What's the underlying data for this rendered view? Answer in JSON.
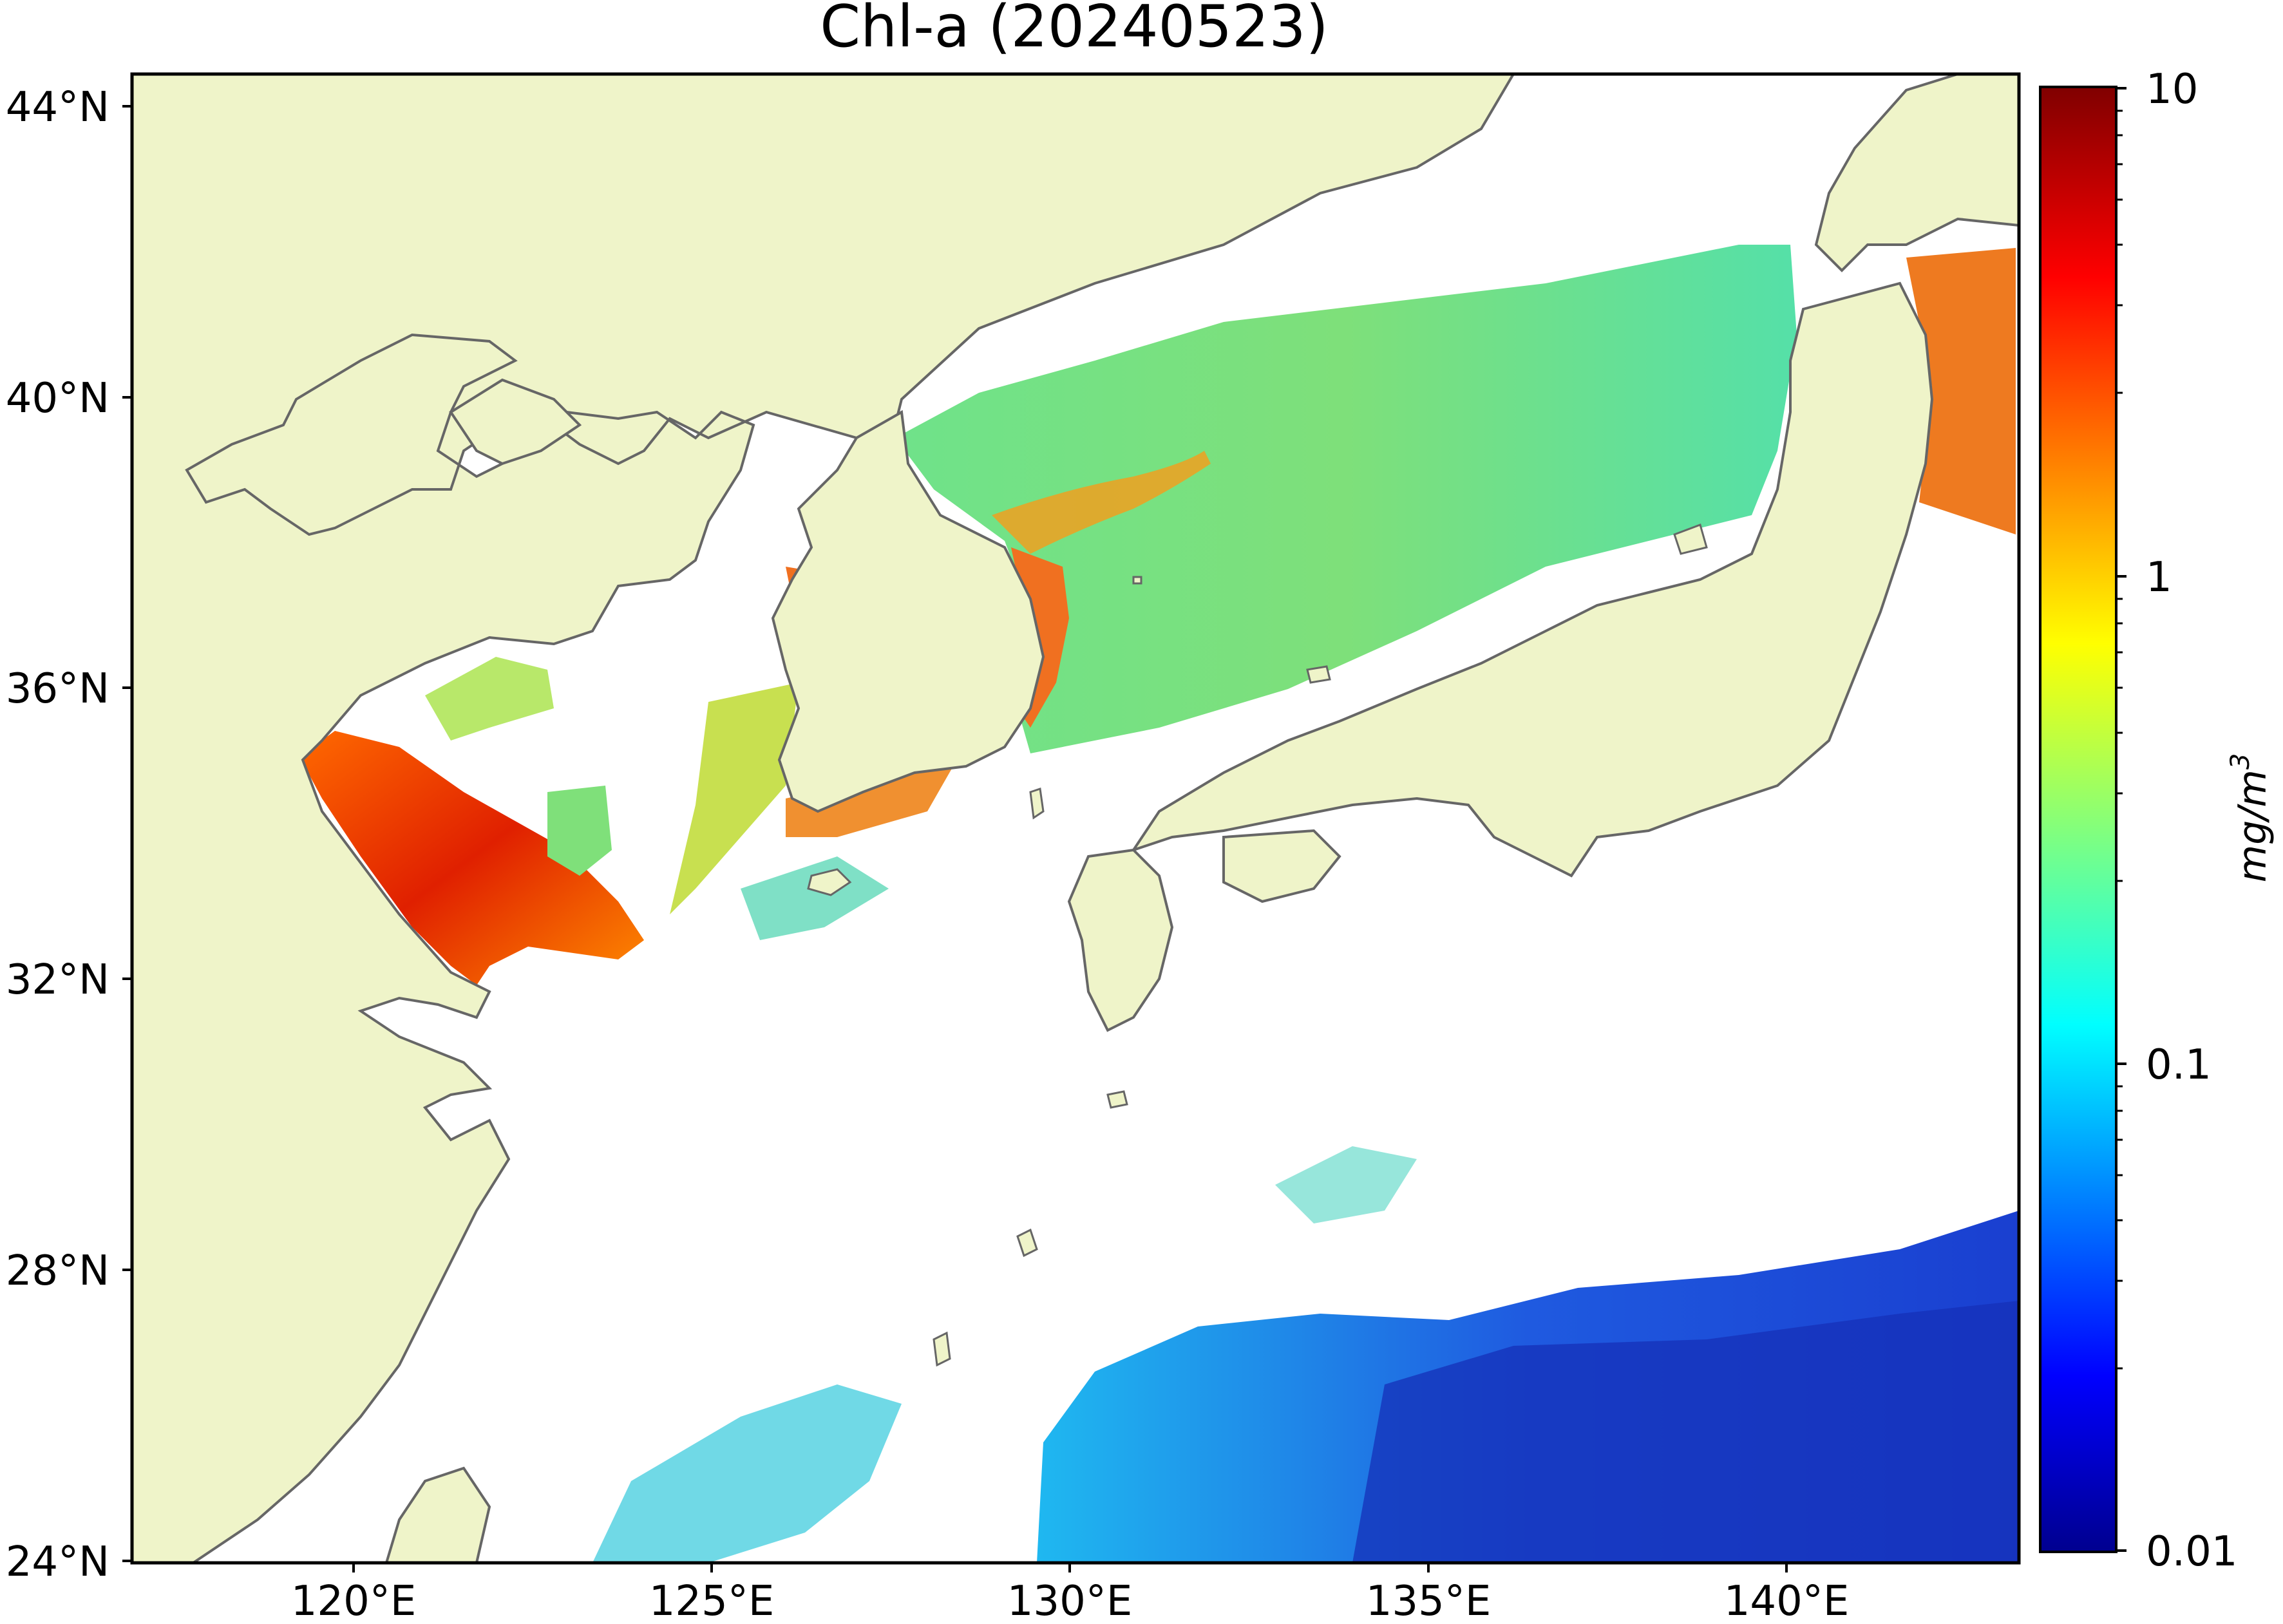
{
  "map": {
    "title": "Chl-a (20240523)",
    "lat_ticks": [
      "44°N",
      "40°N",
      "36°N",
      "32°N",
      "28°N",
      "24°N"
    ],
    "lon_ticks": [
      "120°E",
      "125°E",
      "130°E",
      "135°E",
      "140°E"
    ],
    "lat_range": [
      24,
      44.5
    ],
    "lon_range": [
      116.5,
      143
    ],
    "land_color": "#eff4c9",
    "coast_color": "#666666",
    "no_data_color": "#ffffff"
  },
  "colorbar": {
    "label": "mg/m",
    "label_sup": "3",
    "scale": "log",
    "ticks": [
      "10",
      "1",
      "0.1",
      "0.01"
    ],
    "range": [
      0.01,
      10
    ],
    "colormap": "jet"
  }
}
